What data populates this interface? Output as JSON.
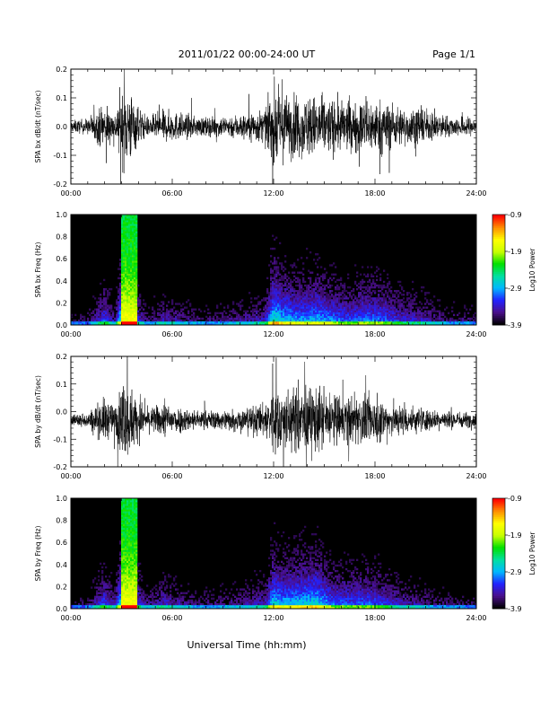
{
  "header": {
    "title": "2011/01/22  00:00-24:00 UT",
    "page_label": "Page 1/1"
  },
  "footer": {
    "xlabel": "Universal Time (hh:mm)"
  },
  "colors": {
    "trace": "#000000",
    "background": "#ffffff",
    "spectrogram_background": "#000000",
    "colorbar_stops": [
      "#000000",
      "#4b0f8c",
      "#2222ff",
      "#00b8ff",
      "#00e0a0",
      "#00e000",
      "#c8ff00",
      "#ffff00",
      "#ff9000",
      "#ff0000"
    ]
  },
  "chart_data": [
    {
      "type": "line",
      "ylabel": "SPA bx dB/dt (nT/sec)",
      "xlim": [
        "00:00",
        "24:00"
      ],
      "x_ticks": [
        "00:00",
        "06:00",
        "12:00",
        "18:00",
        "24:00"
      ],
      "ylim": [
        -0.2,
        0.2
      ],
      "y_ticks": [
        "-0.2",
        "-0.1",
        "0.0",
        "0.1",
        "0.2"
      ],
      "baseline": 0.0,
      "activity_envelope": {
        "x_hours": [
          0,
          1,
          2,
          2.6,
          3.0,
          3.5,
          3.8,
          4.5,
          5.5,
          6.5,
          7.5,
          8.5,
          9.5,
          10.5,
          11.5,
          12.0,
          12.5,
          13.5,
          14.5,
          15.5,
          16.5,
          17.5,
          18.5,
          19.5,
          20.5,
          21.5,
          22.5,
          23.5,
          24
        ],
        "amplitude": [
          0.03,
          0.04,
          0.12,
          0.06,
          0.2,
          0.2,
          0.12,
          0.05,
          0.08,
          0.07,
          0.05,
          0.05,
          0.06,
          0.07,
          0.09,
          0.2,
          0.17,
          0.15,
          0.16,
          0.14,
          0.12,
          0.14,
          0.13,
          0.1,
          0.09,
          0.07,
          0.05,
          0.05,
          0.04
        ]
      }
    },
    {
      "type": "heatmap",
      "ylabel": "SPA bx Freq (Hz)",
      "xlim": [
        "00:00",
        "24:00"
      ],
      "x_ticks": [
        "00:00",
        "06:00",
        "12:00",
        "18:00",
        "24:00"
      ],
      "ylim": [
        0.0,
        1.0
      ],
      "y_ticks": [
        "0.0",
        "0.2",
        "0.4",
        "0.6",
        "0.8",
        "1.0"
      ],
      "colorbar": {
        "label": "Log10 Power",
        "range": [
          -3.9,
          -0.9
        ],
        "ticks": [
          "-0.9",
          "-1.9",
          "-2.9",
          "-3.9"
        ]
      }
    },
    {
      "type": "line",
      "ylabel": "SPA by dB/dt (nT/sec)",
      "xlim": [
        "00:00",
        "24:00"
      ],
      "x_ticks": [
        "00:00",
        "06:00",
        "12:00",
        "18:00",
        "24:00"
      ],
      "ylim": [
        -0.2,
        0.2
      ],
      "y_ticks": [
        "-0.2",
        "-0.1",
        "0.0",
        "0.1",
        "0.2"
      ],
      "baseline": -0.03,
      "activity_envelope": {
        "x_hours": [
          0,
          1,
          2,
          2.6,
          3.0,
          3.5,
          3.8,
          4.5,
          5.5,
          6.5,
          7.5,
          8.5,
          9.5,
          10.5,
          11.5,
          12.0,
          12.5,
          13.5,
          14.5,
          15.5,
          16.5,
          17.5,
          18.5,
          19.5,
          20.5,
          21.5,
          22.5,
          23.5,
          24
        ],
        "amplitude": [
          0.03,
          0.04,
          0.12,
          0.07,
          0.2,
          0.2,
          0.13,
          0.06,
          0.09,
          0.07,
          0.05,
          0.05,
          0.06,
          0.07,
          0.09,
          0.18,
          0.16,
          0.17,
          0.18,
          0.13,
          0.12,
          0.13,
          0.11,
          0.08,
          0.07,
          0.05,
          0.05,
          0.04,
          0.04
        ]
      }
    },
    {
      "type": "heatmap",
      "ylabel": "SPA by Freq (Hz)",
      "xlim": [
        "00:00",
        "24:00"
      ],
      "x_ticks": [
        "00:00",
        "06:00",
        "12:00",
        "18:00",
        "24:00"
      ],
      "ylim": [
        0.0,
        1.0
      ],
      "y_ticks": [
        "0.0",
        "0.2",
        "0.4",
        "0.6",
        "0.8",
        "1.0"
      ],
      "colorbar": {
        "label": "Log10 Power",
        "range": [
          -3.9,
          -0.9
        ],
        "ticks": [
          "-0.9",
          "-1.9",
          "-2.9",
          "-3.9"
        ]
      }
    }
  ]
}
